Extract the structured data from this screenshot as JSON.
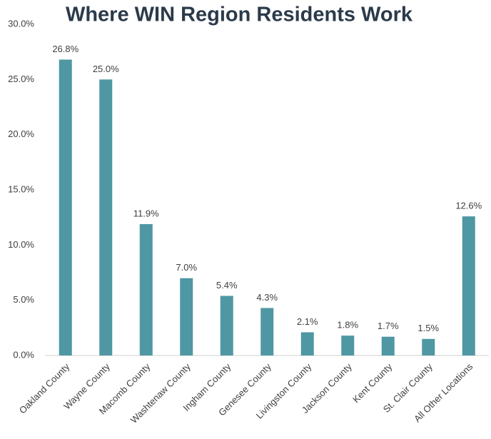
{
  "chart_data": {
    "type": "bar",
    "title": "Where WIN Region Residents Work",
    "categories": [
      "Oakland County",
      "Wayne County",
      "Macomb County",
      "Washtenaw County",
      "Ingham County",
      "Genesee County",
      "Livingston County",
      "Jackson County",
      "Kent County",
      "St. Clair County",
      "All Other Locations"
    ],
    "values": [
      26.8,
      25.0,
      11.9,
      7.0,
      5.4,
      4.3,
      2.1,
      1.8,
      1.7,
      1.5,
      12.6
    ],
    "value_labels": [
      "26.8%",
      "25.0%",
      "11.9%",
      "7.0%",
      "5.4%",
      "4.3%",
      "2.1%",
      "1.8%",
      "1.7%",
      "1.5%",
      "12.6%"
    ],
    "color": "#4f97a3",
    "ylim": [
      0,
      30
    ],
    "yticks": [
      {
        "value": 0,
        "label": "0.0%"
      },
      {
        "value": 5,
        "label": "5.0%"
      },
      {
        "value": 10,
        "label": "10.0%"
      },
      {
        "value": 15,
        "label": "15.0%"
      },
      {
        "value": 20,
        "label": "20.0%"
      },
      {
        "value": 25,
        "label": "25.0%"
      },
      {
        "value": 30,
        "label": "30.0%"
      }
    ],
    "grid": false
  }
}
